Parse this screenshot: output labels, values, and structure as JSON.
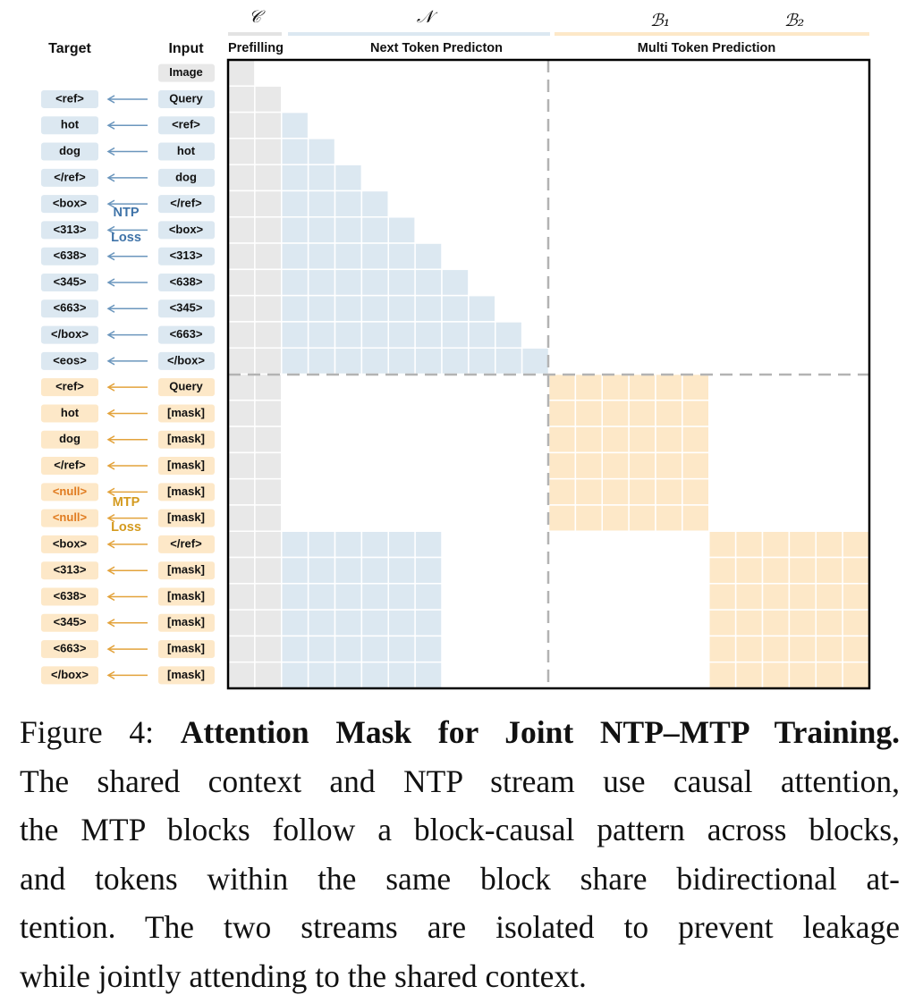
{
  "figure": {
    "symbols": [
      "𝒞",
      "𝒩",
      "ℬ₁",
      "ℬ₂"
    ],
    "sections": [
      "Prefilling",
      "Next Token Predicton",
      "Multi Token Prediction"
    ],
    "headers": {
      "target": "Target",
      "input": "Input"
    },
    "loss": {
      "ntp": [
        "NTP",
        "Loss"
      ],
      "mtp": [
        "MTP",
        "Loss"
      ]
    },
    "rows": [
      {
        "input": "Image"
      },
      {
        "target": "<ref>",
        "input": "Query"
      },
      {
        "target": "hot",
        "input": "<ref>"
      },
      {
        "target": "dog",
        "input": "hot"
      },
      {
        "target": "</ref>",
        "input": "dog"
      },
      {
        "target": "<box>",
        "input": "</ref>"
      },
      {
        "target": "<313>",
        "input": "<box>"
      },
      {
        "target": "<638>",
        "input": "<313>"
      },
      {
        "target": "<345>",
        "input": "<638>"
      },
      {
        "target": "<663>",
        "input": "<345>"
      },
      {
        "target": "</box>",
        "input": "<663>"
      },
      {
        "target": "<eos>",
        "input": "</box>"
      },
      {
        "target": "<ref>",
        "input": "Query"
      },
      {
        "target": "hot",
        "input": "[mask]"
      },
      {
        "target": "dog",
        "input": "[mask]"
      },
      {
        "target": "</ref>",
        "input": "[mask]"
      },
      {
        "target": "<null>",
        "input": "[mask]"
      },
      {
        "target": "<null>",
        "input": "[mask]"
      },
      {
        "target": "<box>",
        "input": "</ref>"
      },
      {
        "target": "<313>",
        "input": "[mask]"
      },
      {
        "target": "<638>",
        "input": "[mask]"
      },
      {
        "target": "<345>",
        "input": "[mask]"
      },
      {
        "target": "<663>",
        "input": "[mask]"
      },
      {
        "target": "</box>",
        "input": "[mask]"
      }
    ]
  },
  "caption": {
    "label": "Figure 4:",
    "title": "Attention Mask for Joint NTP–MTP Training.",
    "lines": [
      "The shared context and NTP stream use causal attention,",
      "the MTP blocks follow a block-causal pattern across blocks,",
      "and tokens within the same block share bidirectional at-",
      "tention. The two streams are isolated to prevent leakage",
      "while jointly attending to the shared context."
    ]
  }
}
